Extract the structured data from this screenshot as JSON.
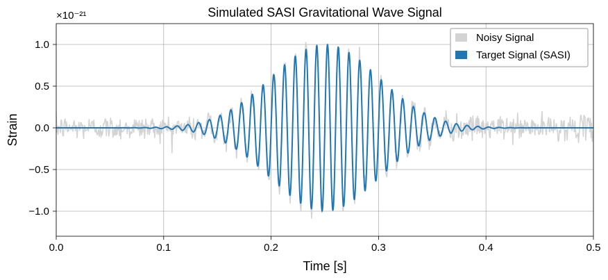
{
  "chart_data": {
    "type": "line",
    "title": "Simulated SASI Gravitational Wave Signal",
    "xlabel": "Time [s]",
    "ylabel": "Strain",
    "xlim": [
      0.0,
      0.5
    ],
    "ylim": [
      -1.3,
      1.25
    ],
    "x_ticks": [
      0.0,
      0.1,
      0.2,
      0.3,
      0.4,
      0.5
    ],
    "x_tick_labels": [
      "0.0",
      "0.1",
      "0.2",
      "0.3",
      "0.4",
      "0.5"
    ],
    "y_ticks": [
      -1.0,
      -0.5,
      0.0,
      0.5,
      1.0
    ],
    "y_tick_labels": [
      "−1.0",
      "−0.5",
      "0.0",
      "0.5",
      "1.0"
    ],
    "y_offset_label": "×10⁻²¹",
    "grid": true,
    "legend_position": "top-right",
    "series": [
      {
        "name": "Noisy Signal",
        "color": "#d3d3d3",
        "kind": "noisy",
        "noise_sigma": 0.07,
        "num_samples": 900
      },
      {
        "name": "Target Signal (SASI)",
        "color": "#1f77b4",
        "kind": "chirp",
        "model": "A * exp(-((t - t0)^2) / (2 * sigma^2)) * sin(2*pi*f*(t - t0))",
        "amplitude": 1.0,
        "center_time_s": 0.25,
        "envelope_sigma_s": 0.05,
        "frequency_hz": 100,
        "num_samples": 2000
      }
    ]
  }
}
